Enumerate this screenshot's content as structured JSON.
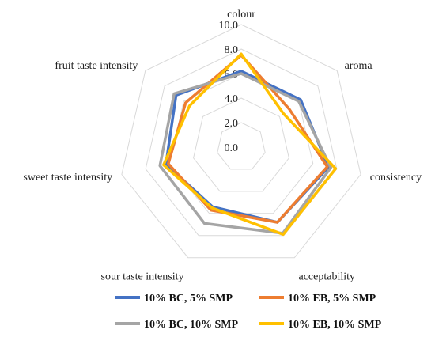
{
  "chart_data": {
    "type": "radar",
    "title": "",
    "axes": [
      "colour",
      "aroma",
      "consistency",
      "acceptability",
      "sour taste intensity",
      "sweet taste intensity",
      "fruit taste intensity"
    ],
    "ticks": [
      "0.0",
      "2.0",
      "4.0",
      "6.0",
      "8.0",
      "10.0"
    ],
    "range": [
      0,
      10
    ],
    "grid": true,
    "legend_position": "bottom",
    "series": [
      {
        "name": "10% BC, 5% SMP",
        "color": "#4472C4",
        "values": [
          6.2,
          6.2,
          7.3,
          6.8,
          5.4,
          6.3,
          6.8
        ]
      },
      {
        "name": "10% EB, 5% SMP",
        "color": "#ED7D31",
        "values": [
          7.5,
          5.0,
          7.2,
          6.8,
          5.7,
          6.1,
          5.8
        ]
      },
      {
        "name": "10% BC, 10% SMP",
        "color": "#A5A5A5",
        "values": [
          6.0,
          6.0,
          7.5,
          7.8,
          6.9,
          6.8,
          7.0
        ]
      },
      {
        "name": "10% EB, 10% SMP",
        "color": "#FFC000",
        "values": [
          7.6,
          4.4,
          7.9,
          7.9,
          5.5,
          6.5,
          5.4
        ]
      }
    ]
  }
}
